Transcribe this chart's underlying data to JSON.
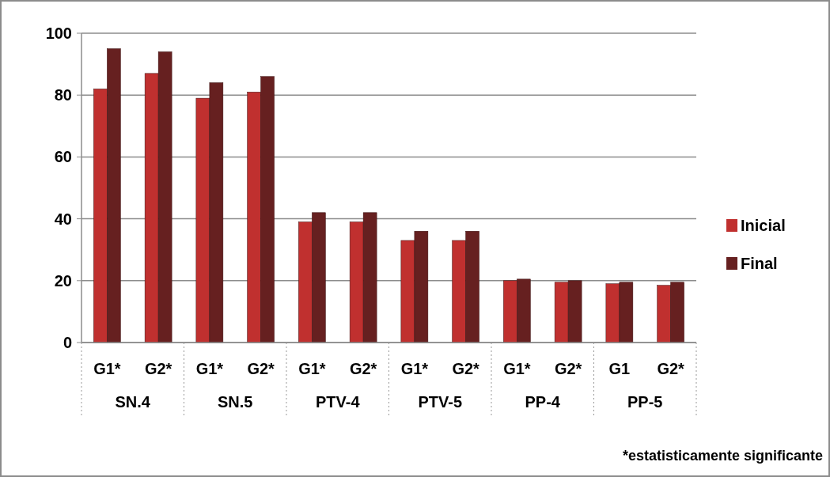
{
  "chart_data": {
    "type": "bar",
    "categories": [
      "G1*",
      "G2*",
      "G1*",
      "G2*",
      "G1*",
      "G2*",
      "G1*",
      "G2*",
      "G1*",
      "G2*",
      "G1",
      "G2*"
    ],
    "series": [
      {
        "name": "Inicial",
        "color": "#c0302f",
        "values": [
          82,
          87,
          79,
          81,
          39,
          39,
          33,
          33,
          20,
          19.5,
          19,
          18.5
        ]
      },
      {
        "name": "Final",
        "color": "#662020",
        "values": [
          95,
          94,
          84,
          86,
          42,
          42,
          36,
          36,
          20.5,
          20,
          19.5,
          19.5
        ]
      }
    ],
    "ylim": [
      0,
      100
    ],
    "yticks": [
      0,
      20,
      40,
      60,
      80,
      100
    ],
    "grid": "y",
    "legend": "right",
    "annotations": [
      "SN.4",
      "SN.5",
      "PTV-4",
      "PTV-5",
      "PP-4",
      "PP-5",
      "*estatisticamente significante"
    ]
  }
}
